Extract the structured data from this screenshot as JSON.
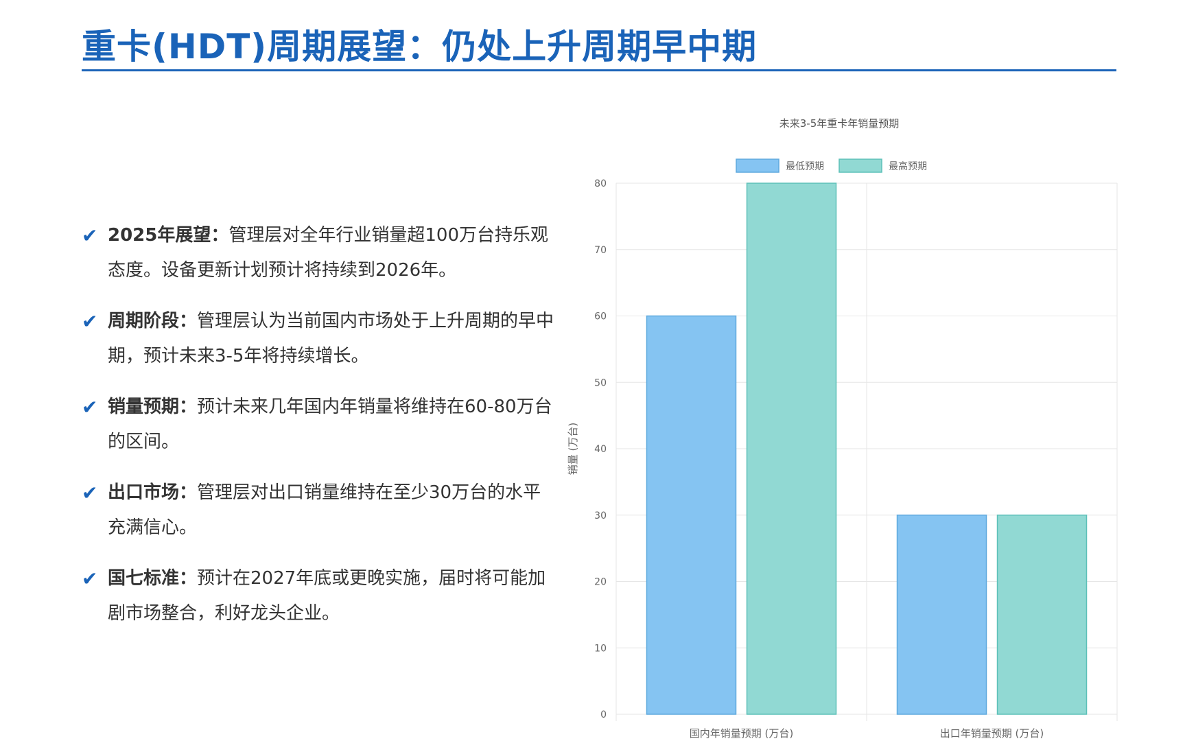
{
  "slide": {
    "title": "重卡(HDT)周期展望：仍处上升周期早中期",
    "bullets": [
      {
        "label": "2025年展望：",
        "text": "管理层对全年行业销量超100万台持乐观态度。设备更新计划预计将持续到2026年。"
      },
      {
        "label": "周期阶段：",
        "text": "管理层认为当前国内市场处于上升周期的早中期，预计未来3-5年将持续增长。"
      },
      {
        "label": "销量预期：",
        "text": "预计未来几年国内年销量将维持在60-80万台的区间。"
      },
      {
        "label": "出口市场：",
        "text": "管理层对出口销量维持在至少30万台的水平充满信心。"
      },
      {
        "label": "国七标准：",
        "text": "预计在2027年底或更晚实施，届时将可能加剧市场整合，利好龙头企业。"
      }
    ],
    "check_icon": "✔",
    "colors": {
      "accent": "#1a63b8",
      "text": "#333333"
    }
  },
  "chart_data": {
    "type": "bar",
    "title": "未来3-5年重卡年销量预期",
    "categories": [
      "国内年销量预期 (万台)",
      "出口年销量预期 (万台)"
    ],
    "series": [
      {
        "name": "最低预期",
        "values": [
          60,
          30
        ],
        "color": "#85c4f2",
        "border": "#5ea9de"
      },
      {
        "name": "最高预期",
        "values": [
          80,
          30
        ],
        "color": "#91d9d3",
        "border": "#5cc0b8"
      }
    ],
    "ylabel": "销量 (万台)",
    "xlabel": "",
    "ylim": [
      0,
      80
    ],
    "yticks": [
      0,
      10,
      20,
      30,
      40,
      50,
      60,
      70,
      80
    ],
    "grid": true,
    "legend": "top-center"
  }
}
